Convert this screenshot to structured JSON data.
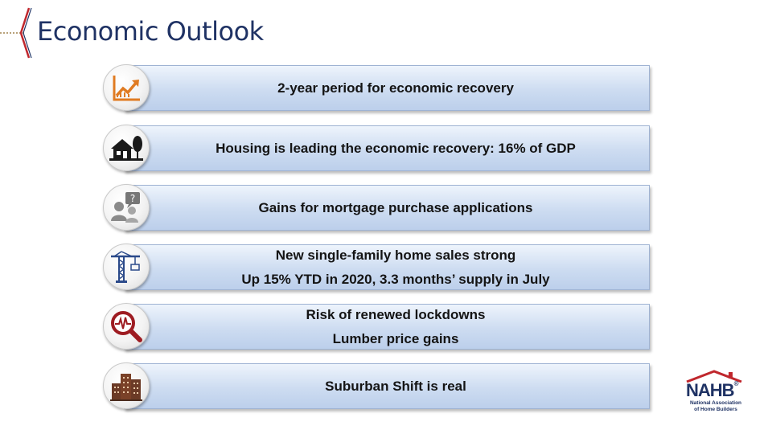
{
  "slide": {
    "title": "Economic Outlook"
  },
  "items": [
    {
      "icon": "growth-chart-icon",
      "lines": [
        "2-year period for economic recovery"
      ]
    },
    {
      "icon": "house-tree-icon",
      "lines": [
        "Housing is leading the economic recovery: 16% of GDP"
      ]
    },
    {
      "icon": "people-question-icon",
      "lines": [
        "Gains for mortgage purchase applications"
      ]
    },
    {
      "icon": "construction-crane-icon",
      "lines": [
        "New single-family home sales strong",
        "Up 15% YTD in 2020, 3.3 months’ supply in July"
      ]
    },
    {
      "icon": "magnifier-pulse-icon",
      "lines": [
        "Risk of renewed lockdowns",
        "Lumber price gains"
      ]
    },
    {
      "icon": "city-buildings-icon",
      "lines": [
        "Suburban Shift is real"
      ]
    }
  ],
  "logo": {
    "wordmark": "NAHB",
    "registered": "®",
    "line1": "National Association",
    "line2": "of Home Builders"
  },
  "colors": {
    "title": "#1f3264",
    "accent_red": "#c0272d",
    "bar_light": "#eef4fc",
    "bar_dark": "#bccfeb",
    "icon_orange": "#e07b22"
  }
}
